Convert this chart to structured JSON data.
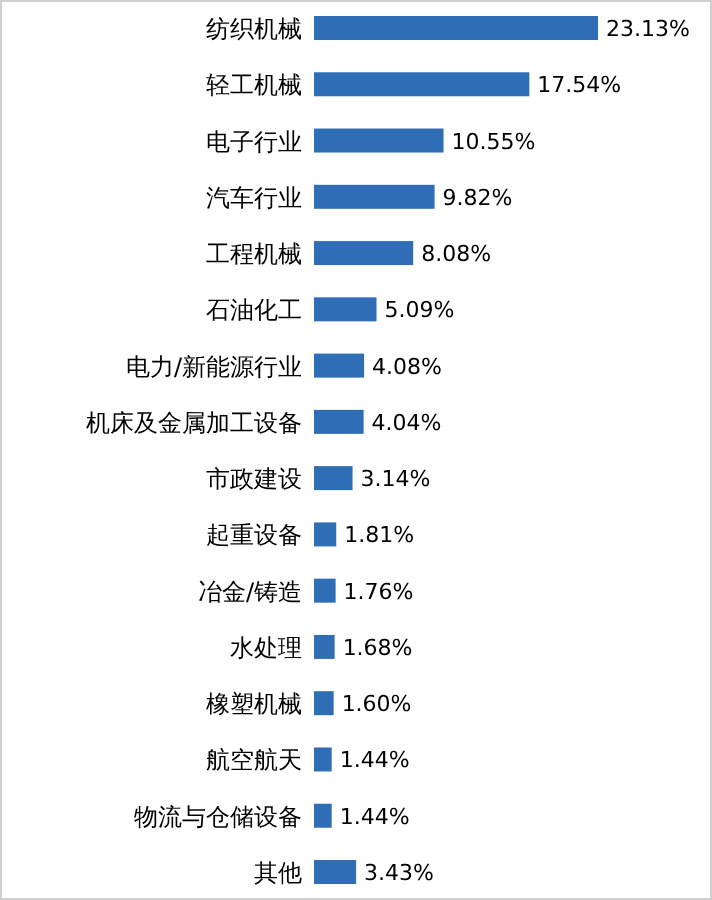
{
  "chart_data": {
    "type": "bar",
    "orientation": "horizontal",
    "categories": [
      "纺织机械",
      "轻工机械",
      "电子行业",
      "汽车行业",
      "工程机械",
      "石油化工",
      "电力/新能源行业",
      "机床及金属加工设备",
      "市政建设",
      "起重设备",
      "冶金/铸造",
      "水处理",
      "橡塑机械",
      "航空航天",
      "物流与仓储设备",
      "其他"
    ],
    "values": [
      23.13,
      17.54,
      10.55,
      9.82,
      8.08,
      5.09,
      4.08,
      4.04,
      3.14,
      1.81,
      1.76,
      1.68,
      1.6,
      1.44,
      1.44,
      3.43
    ],
    "value_labels": [
      "23.13%",
      "17.54%",
      "10.55%",
      "9.82%",
      "8.08%",
      "5.09%",
      "4.08%",
      "4.04%",
      "3.14%",
      "1.81%",
      "1.76%",
      "1.68%",
      "1.60%",
      "1.44%",
      "1.44%",
      "3.43%"
    ],
    "color": "#2f6db5"
  }
}
